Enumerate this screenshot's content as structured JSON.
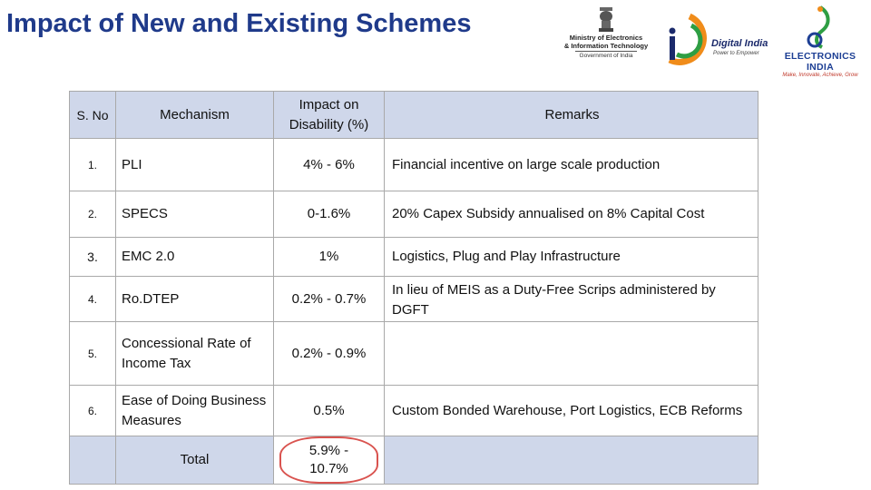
{
  "title": "Impact of New and Existing Schemes",
  "logos": {
    "meity": {
      "icon": "national-emblem-icon",
      "line1": "Ministry of Electronics",
      "line2": "& Information Technology",
      "line3": "Government of India"
    },
    "digital_india": {
      "icon": "digital-india-swoosh-icon",
      "name": "Digital India",
      "tagline": "Power to Empower"
    },
    "electronics_india": {
      "icon": "electronics-india-emblem-icon",
      "name": "ELECTRONICS INDIA",
      "tagline": "Make, Innovate, Achieve, Grow"
    }
  },
  "colors": {
    "title": "#1f3a8a",
    "header_bg": "#cfd7ea",
    "border": "#a9a9a9",
    "highlight": "#d9534f"
  },
  "table": {
    "headers": {
      "sno": "S. No",
      "mechanism": "Mechanism",
      "impact_line1": "Impact on",
      "impact_line2": "Disability (%)",
      "remarks": "Remarks"
    },
    "rows": [
      {
        "sno": "1.",
        "mechanism": "PLI",
        "impact": "4% - 6%",
        "remarks": "Financial incentive on large scale production"
      },
      {
        "sno": "2.",
        "mechanism": "SPECS",
        "impact": "0-1.6%",
        "remarks": "20% Capex Subsidy annualised on 8% Capital Cost"
      },
      {
        "sno": "3.",
        "mechanism": "EMC 2.0",
        "impact": "1%",
        "remarks": "Logistics, Plug and Play Infrastructure"
      },
      {
        "sno": "4.",
        "mechanism": "Ro.DTEP",
        "impact": "0.2% - 0.7%",
        "remarks": "In lieu of MEIS as a Duty-Free Scrips administered by DGFT"
      },
      {
        "sno": "5.",
        "mechanism": "Concessional Rate of Income Tax",
        "impact": "0.2% - 0.9%",
        "remarks": ""
      },
      {
        "sno": "6.",
        "mechanism": "Ease of Doing Business Measures",
        "impact": "0.5%",
        "remarks": "Custom Bonded Warehouse, Port Logistics, ECB Reforms"
      }
    ],
    "total": {
      "label": "Total",
      "value": "5.9% - 10.7%"
    }
  }
}
